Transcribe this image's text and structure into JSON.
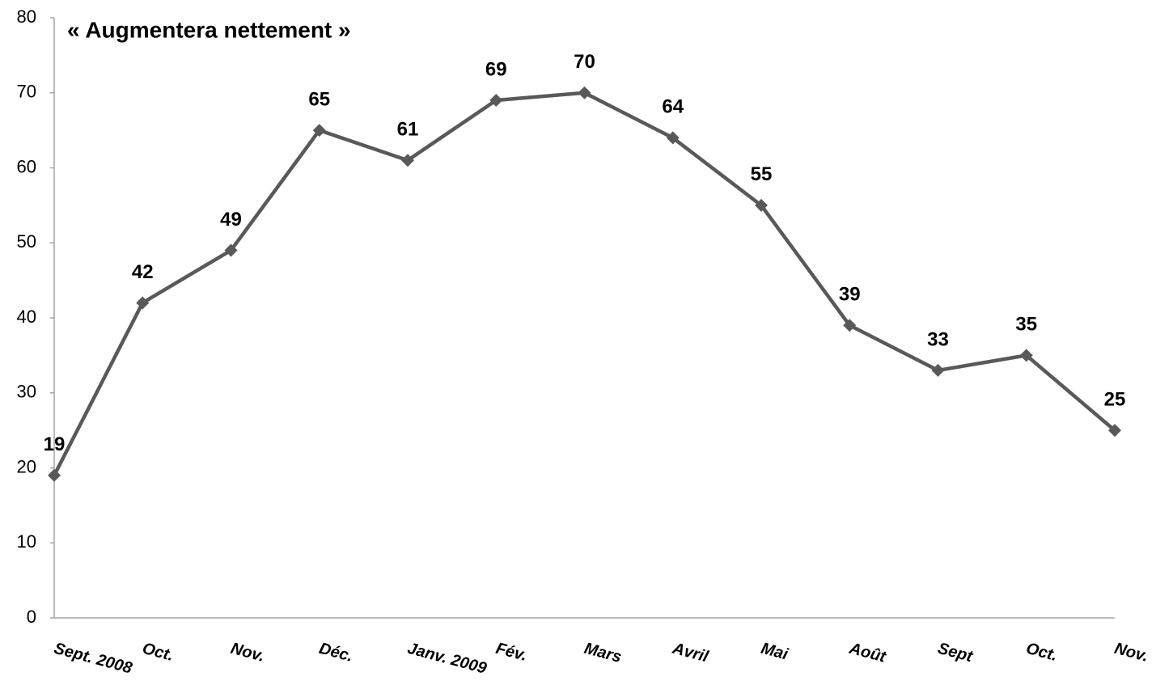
{
  "chart_data": {
    "type": "line",
    "title": "« Augmentera nettement »",
    "categories": [
      "Sept. 2008",
      "Oct.",
      "Nov.",
      "Déc.",
      "Janv. 2009",
      "Fév.",
      "Mars",
      "Avril",
      "Mai",
      "Août",
      "Sept",
      "Oct.",
      "Nov."
    ],
    "series": [
      {
        "color": "#595959",
        "values": [
          19,
          42,
          49,
          65,
          61,
          69,
          70,
          64,
          55,
          39,
          33,
          35,
          25
        ]
      }
    ],
    "ylim": [
      0,
      80
    ],
    "yticks": [
      0,
      10,
      20,
      30,
      40,
      50,
      60,
      70,
      80
    ],
    "grid": false
  }
}
